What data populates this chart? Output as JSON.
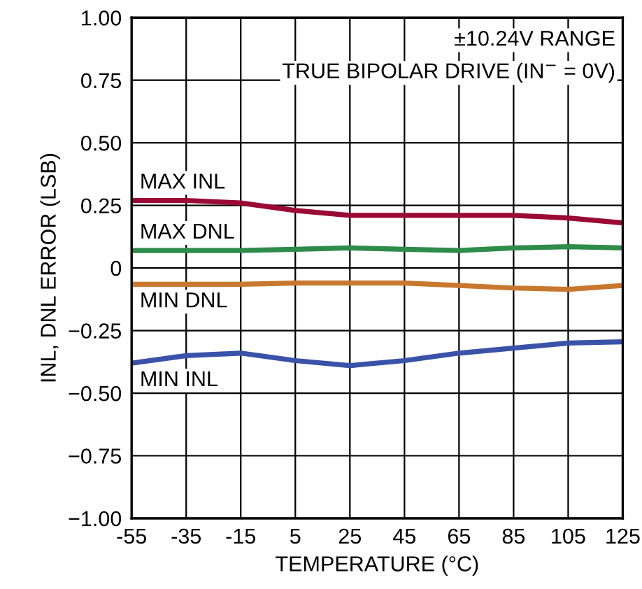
{
  "chart_data": {
    "type": "line",
    "xlabel": "TEMPERATURE (°C)",
    "ylabel": "INL, DNL ERROR (LSB)",
    "annotations": [
      "±10.24V RANGE",
      "TRUE BIPOLAR DRIVE (IN$^{−}$ = 0V)"
    ],
    "x": [
      -55,
      -35,
      -15,
      5,
      25,
      45,
      65,
      85,
      105,
      125
    ],
    "series": [
      {
        "name": "MAX INL",
        "color": "#9b0a36",
        "values": [
          0.27,
          0.27,
          0.26,
          0.23,
          0.21,
          0.21,
          0.21,
          0.21,
          0.2,
          0.18
        ]
      },
      {
        "name": "MAX DNL",
        "color": "#2e8b4a",
        "values": [
          0.07,
          0.07,
          0.07,
          0.075,
          0.08,
          0.075,
          0.07,
          0.08,
          0.085,
          0.08
        ]
      },
      {
        "name": "MIN DNL",
        "color": "#c8782e",
        "values": [
          -0.065,
          -0.065,
          -0.065,
          -0.06,
          -0.06,
          -0.06,
          -0.07,
          -0.08,
          -0.085,
          -0.07
        ]
      },
      {
        "name": "MIN INL",
        "color": "#3a52a8",
        "values": [
          -0.38,
          -0.35,
          -0.34,
          -0.37,
          -0.39,
          -0.37,
          -0.34,
          -0.32,
          -0.3,
          -0.295
        ]
      }
    ],
    "xlim": [
      -55,
      125
    ],
    "xticks": [
      -55,
      -35,
      -15,
      5,
      25,
      45,
      65,
      85,
      105,
      125
    ],
    "ylim": [
      -1.0,
      1.0
    ],
    "yticks": [
      {
        "value": -1.0,
        "label": "−1.00"
      },
      {
        "value": -0.75,
        "label": "−0.75"
      },
      {
        "value": -0.5,
        "label": "−0.50"
      },
      {
        "value": -0.25,
        "label": "−0.25"
      },
      0,
      {
        "value": 0.25,
        "label": "0.25"
      },
      {
        "value": 0.5,
        "label": "0.50"
      },
      {
        "value": 0.75,
        "label": "0.75"
      },
      {
        "value": 1.0,
        "label": "1.00"
      }
    ],
    "grid": true,
    "legend": false,
    "marker": "none",
    "line_style": "solid"
  }
}
